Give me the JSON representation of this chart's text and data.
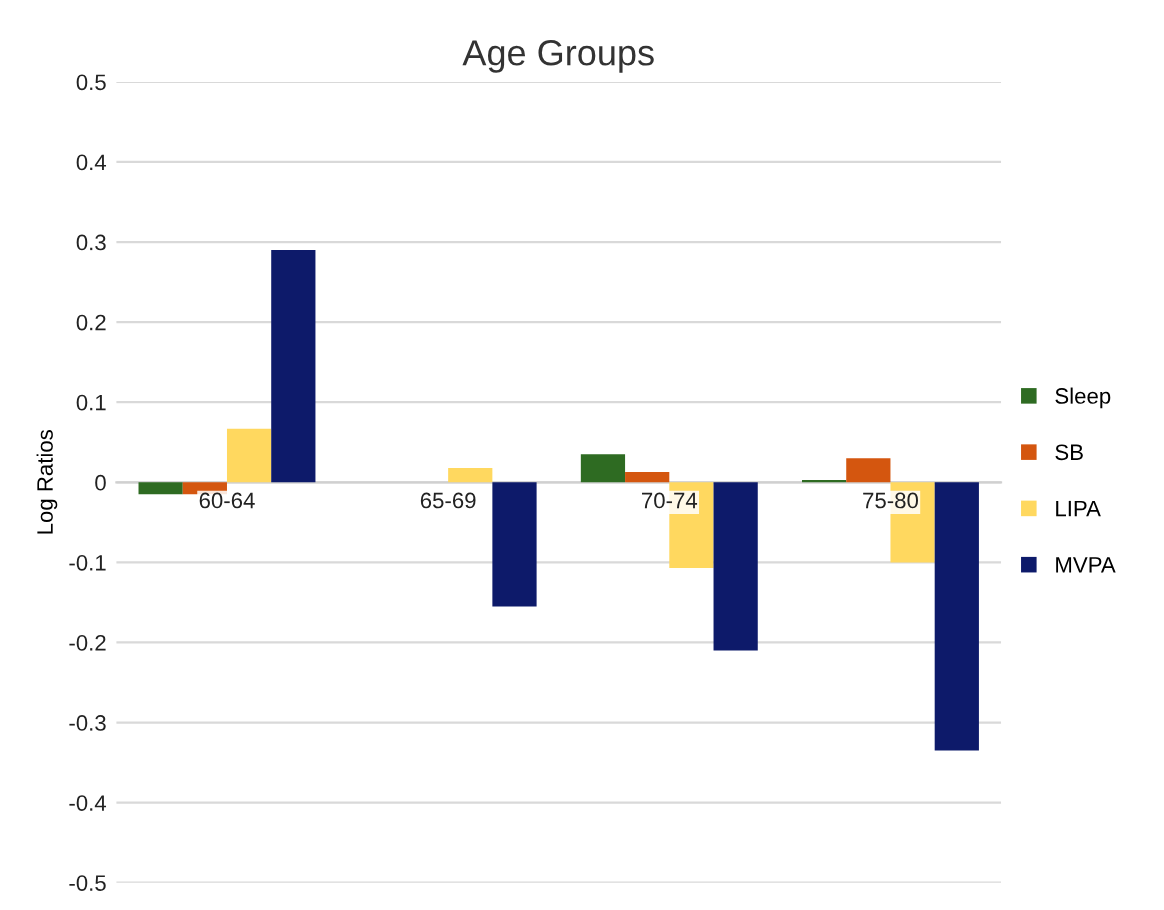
{
  "chart_data": {
    "type": "bar",
    "title": "Age Groups",
    "ylabel": "Log Ratios",
    "categories": [
      "60-64",
      "65-69",
      "70-74",
      "75-80"
    ],
    "series": [
      {
        "name": "Sleep",
        "color": "#2e6b22",
        "values": [
          -0.015,
          0,
          0.035,
          0.003
        ]
      },
      {
        "name": "SB",
        "color": "#d4560f",
        "values": [
          -0.015,
          0,
          0.013,
          0.03
        ]
      },
      {
        "name": "LIPA",
        "color": "#ffd85f",
        "values": [
          0.067,
          0.018,
          -0.107,
          -0.1
        ]
      },
      {
        "name": "MVPA",
        "color": "#0d1a6a",
        "values": [
          0.29,
          -0.155,
          -0.21,
          -0.335
        ]
      }
    ],
    "ylim": [
      -0.5,
      0.5
    ],
    "yticks": [
      -0.5,
      -0.4,
      -0.3,
      -0.2,
      -0.1,
      0,
      0.1,
      0.2,
      0.3,
      0.4,
      0.5
    ],
    "grid": "y",
    "legend": "right"
  }
}
